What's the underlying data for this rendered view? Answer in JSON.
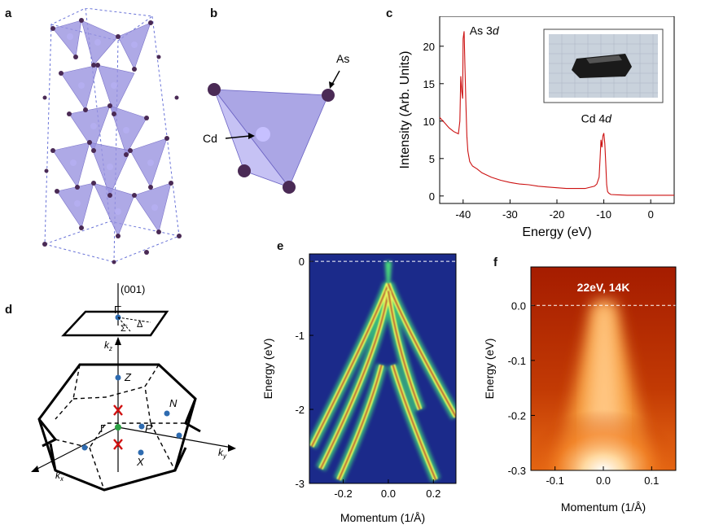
{
  "panel_labels": {
    "a": "a",
    "b": "b",
    "c": "c",
    "d": "d",
    "e": "e",
    "f": "f"
  },
  "panel_b": {
    "label_as": "As",
    "label_cd": "Cd"
  },
  "panel_d": {
    "direction": "(001)",
    "points": {
      "gamma_bar": "Γ̄",
      "sigma_bar": "Σ̄",
      "delta_bar": "Δ̄",
      "kz": "k",
      "kz_sub": "z",
      "Z": "Z",
      "N": "N",
      "Gamma": "Γ",
      "P": "P",
      "X": "X",
      "ky": "k",
      "ky_sub": "y",
      "kx": "k",
      "kx_sub": "x"
    }
  },
  "colors": {
    "red": "#d01010",
    "navy": "#1e2a6e",
    "polyhedron": "#9a94e0",
    "atom": "#4a2a55",
    "cmap_low": "#1b2a8a",
    "spectrum": "#cc1111"
  },
  "chart_data": [
    {
      "id": "c",
      "type": "line",
      "xlabel": "Energy (eV)",
      "ylabel": "Intensity (Arb. Units)",
      "xlim": [
        -45,
        5
      ],
      "ylim": [
        -1,
        24
      ],
      "xticks": [
        -40,
        -30,
        -20,
        -10,
        0
      ],
      "yticks": [
        0,
        5,
        10,
        15,
        20
      ],
      "annotations": [
        {
          "text": "As 3",
          "italic": "d",
          "x": -40,
          "y": 22
        },
        {
          "text": "Cd 4",
          "italic": "d",
          "x": -10,
          "y": 8.5
        }
      ],
      "inset": "crystal photo",
      "series": [
        {
          "name": "XPS spectrum",
          "x": [
            -45,
            -44,
            -43,
            -42,
            -41,
            -40.7,
            -40.5,
            -40.3,
            -40.1,
            -40,
            -39.8,
            -39.6,
            -39.4,
            -39.2,
            -39,
            -38.6,
            -38,
            -37,
            -36,
            -35,
            -34,
            -32,
            -30,
            -28,
            -26,
            -24,
            -22,
            -20,
            -18,
            -16,
            -14,
            -12,
            -11.5,
            -11,
            -10.8,
            -10.6,
            -10.4,
            -10.2,
            -10,
            -9.8,
            -9.6,
            -9.4,
            -9.2,
            -9,
            -8.5,
            -7,
            -5,
            -3,
            -1,
            0,
            2,
            5
          ],
          "y": [
            10.5,
            9.8,
            9.1,
            8.6,
            8.3,
            10,
            16,
            14,
            13,
            21,
            22,
            17,
            12,
            8,
            6,
            4.6,
            4,
            3.6,
            3.1,
            2.8,
            2.5,
            2.1,
            1.8,
            1.6,
            1.5,
            1.3,
            1.2,
            1.1,
            1,
            1,
            1,
            1.3,
            1.6,
            2.5,
            5,
            7.5,
            6.5,
            8,
            8.4,
            7,
            4.5,
            1.5,
            0.6,
            0.4,
            0.2,
            0.15,
            0.1,
            0.1,
            0.1,
            0.1,
            0.1,
            0.1
          ]
        }
      ]
    },
    {
      "id": "e",
      "type": "heatmap",
      "xlabel": "Momentum (1/Å)",
      "ylabel": "Energy (eV)",
      "xlim": [
        -0.35,
        0.3
      ],
      "ylim": [
        -3,
        0.1
      ],
      "xticks": [
        -0.2,
        0,
        0.2
      ],
      "xticklabels": [
        "-0.2",
        "0.0",
        "0.2"
      ],
      "yticks": [
        0,
        -1,
        -2,
        -3
      ],
      "yticklabels": [
        "0",
        "-1",
        "-2",
        "-3"
      ],
      "fermi_level": 0,
      "bands": [
        {
          "from": [
            0,
            -0.3
          ],
          "to": [
            -0.34,
            -2.5
          ],
          "ctrl": [
            -0.06,
            -0.8
          ]
        },
        {
          "from": [
            0,
            -0.3
          ],
          "to": [
            0.3,
            -2.1
          ],
          "ctrl": [
            0.06,
            -0.8
          ]
        },
        {
          "from": [
            0,
            -0.4
          ],
          "to": [
            -0.3,
            -2.8
          ],
          "ctrl": [
            -0.04,
            -1.2
          ]
        },
        {
          "from": [
            0,
            -0.4
          ],
          "to": [
            0.14,
            -2.0
          ],
          "ctrl": [
            0.04,
            -1.2
          ]
        },
        {
          "from": [
            -0.03,
            -1.4
          ],
          "to": [
            -0.22,
            -2.95
          ],
          "ctrl": [
            -0.08,
            -2.0
          ]
        },
        {
          "from": [
            0.02,
            -1.4
          ],
          "to": [
            0.21,
            -2.95
          ],
          "ctrl": [
            0.08,
            -2.0
          ]
        }
      ]
    },
    {
      "id": "f",
      "type": "heatmap",
      "title": "22eV, 14K",
      "xlabel": "Momentum (1/Å)",
      "ylabel": "Energy (eV)",
      "xlim": [
        -0.15,
        0.15
      ],
      "ylim": [
        -0.3,
        0.07
      ],
      "xticks": [
        -0.1,
        0,
        0.1
      ],
      "xticklabels": [
        "-0.1",
        "0.0",
        "0.1"
      ],
      "yticks": [
        0,
        -0.1,
        -0.2,
        -0.3
      ],
      "yticklabels": [
        "0.0",
        "-0.1",
        "-0.2",
        "-0.3"
      ],
      "fermi_level": 0
    }
  ]
}
